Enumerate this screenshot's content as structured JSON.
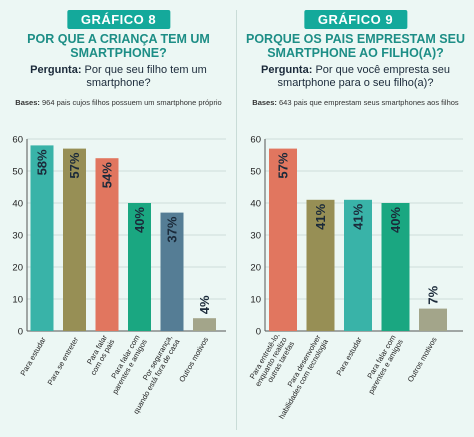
{
  "panels": [
    {
      "badge": "GRÁFICO 8",
      "title": "POR QUE A CRIANÇA TEM UM SMARTPHONE?",
      "question_label": "Pergunta:",
      "question_text": "Por que seu filho tem um smartphone?",
      "bases_label": "Bases:",
      "bases_text": "964 pais cujos filhos possuem um smartphone próprio"
    },
    {
      "badge": "GRÁFICO 9",
      "title": "PORQUE OS PAIS EMPRESTAM SEU SMARTPHONE AO FILHO(A)?",
      "question_label": "Pergunta:",
      "question_text": "Por que você empresta seu smartphone para o seu filho(a)?",
      "bases_label": "Bases:",
      "bases_text": "643 pais que emprestam seus smartphones aos filhos"
    }
  ],
  "chart_data": [
    {
      "type": "bar",
      "ylim": [
        0,
        60
      ],
      "yticks": [
        0,
        10,
        20,
        30,
        40,
        50,
        60
      ],
      "grid": true,
      "categories": [
        [
          "Para estudar"
        ],
        [
          "Para se entreter"
        ],
        [
          "Para falar",
          "com os pais"
        ],
        [
          "Para falar com",
          "parentes e amigos"
        ],
        [
          "Por segurança,",
          "quando está fora de casa"
        ],
        [
          "Outros motivos"
        ]
      ],
      "values": [
        58,
        57,
        54,
        40,
        37,
        4
      ],
      "value_labels": [
        "58%",
        "57%",
        "54%",
        "40%",
        "37%",
        "4%"
      ],
      "colors": [
        "#39b3a8",
        "#978f55",
        "#e1765f",
        "#1aa781",
        "#557d95",
        "#a3a58a"
      ]
    },
    {
      "type": "bar",
      "ylim": [
        0,
        60
      ],
      "yticks": [
        0,
        10,
        20,
        30,
        40,
        50,
        60
      ],
      "grid": true,
      "categories": [
        [
          "Para entretê-lo,",
          "enquanto realizo",
          "outras tarefas"
        ],
        [
          "Para desenvolver",
          "habilidades com tecnologia"
        ],
        [
          "Para estudar"
        ],
        [
          "Para falar com",
          "parentes e amigos"
        ],
        [
          "Outros motivos"
        ]
      ],
      "values": [
        57,
        41,
        41,
        40,
        7
      ],
      "value_labels": [
        "57%",
        "41%",
        "41%",
        "40%",
        "7%"
      ],
      "colors": [
        "#e1765f",
        "#978f55",
        "#39b3a8",
        "#1aa781",
        "#a3a58a"
      ]
    }
  ]
}
